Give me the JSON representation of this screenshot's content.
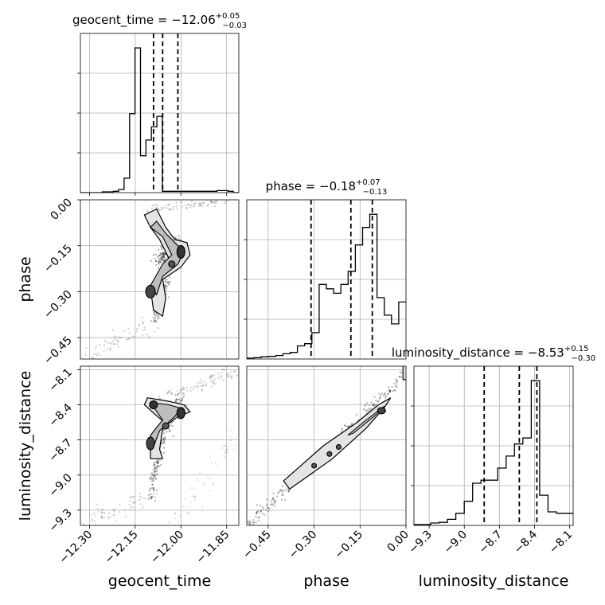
{
  "chart_data": {
    "type": "corner",
    "parameters": [
      "geocent_time",
      "phase",
      "luminosity_distance"
    ],
    "titles": {
      "geocent_time": {
        "text": "geocent_time = −12.06",
        "plus": "+0.05",
        "minus": "−0.03"
      },
      "phase": {
        "text": "phase = −0.18",
        "plus": "+0.07",
        "minus": "−0.13"
      },
      "luminosity_distance": {
        "text": "luminosity_distance = −8.53",
        "plus": "+0.15",
        "minus": "−0.30"
      }
    },
    "xlabels": {
      "geocent_time": "geocent_time",
      "phase": "phase",
      "luminosity_distance": "luminosity_distance"
    },
    "ylabels": {
      "phase": "phase",
      "luminosity_distance": "luminosity_distance"
    },
    "ranges": {
      "geocent_time": [
        -12.33,
        -11.81
      ],
      "phase": [
        -0.52,
        0.0
      ],
      "luminosity_distance": [
        -9.43,
        -8.07
      ]
    },
    "ticks": {
      "geocent_time": {
        "values": [
          -12.3,
          -12.15,
          -12.0,
          -11.85
        ],
        "labels": [
          "−12.30",
          "−12.15",
          "−12.00",
          "−11.85"
        ]
      },
      "phase": {
        "values": [
          -0.45,
          -0.3,
          -0.15,
          0.0
        ],
        "labels": [
          "−0.45",
          "−0.30",
          "−0.15",
          "0.00"
        ]
      },
      "luminosity_distance": {
        "values": [
          -9.3,
          -9.0,
          -8.7,
          -8.4,
          -8.1
        ],
        "labels": [
          "−9.3",
          "−9.0",
          "−8.7",
          "−8.4",
          "−8.1"
        ]
      }
    },
    "quantiles": {
      "geocent_time": [
        -12.09,
        -12.06,
        -12.01
      ],
      "phase": [
        -0.31,
        -0.18,
        -0.11
      ],
      "luminosity_distance": [
        -8.83,
        -8.53,
        -8.38
      ]
    },
    "histograms": {
      "geocent_time": {
        "edges_range": [
          -12.33,
          -11.81
        ],
        "counts": [
          0,
          0,
          0,
          0,
          0.3,
          0.3,
          0.5,
          1.2,
          5.5,
          30,
          55,
          14,
          20,
          25,
          29,
          0.5,
          0.5,
          0.5,
          0.5,
          0.5,
          0.5,
          0.5,
          0.5,
          0.5,
          0.5,
          0.8,
          0.8,
          0.5,
          0
        ]
      },
      "phase": {
        "edges_range": [
          -0.52,
          0.0
        ],
        "counts": [
          0.2,
          0.3,
          0.5,
          0.6,
          0.8,
          1.2,
          1.5,
          3.0,
          3.5,
          6.0,
          17.0,
          16.0,
          15.0,
          17.0,
          20.0,
          26.0,
          30.0,
          33.0,
          14.0,
          10.0,
          8.0,
          13.0
        ]
      },
      "luminosity_distance": {
        "edges_range": [
          -9.43,
          -8.07
        ],
        "counts": [
          0.3,
          0.3,
          0.8,
          1.0,
          2.0,
          4.0,
          8.0,
          14.0,
          15.0,
          15.0,
          19.0,
          23.0,
          27.0,
          29.0,
          48.0,
          10.0,
          4.5,
          4.0,
          4.0
        ]
      }
    },
    "grid": true,
    "show_density": true,
    "legend": "none"
  }
}
